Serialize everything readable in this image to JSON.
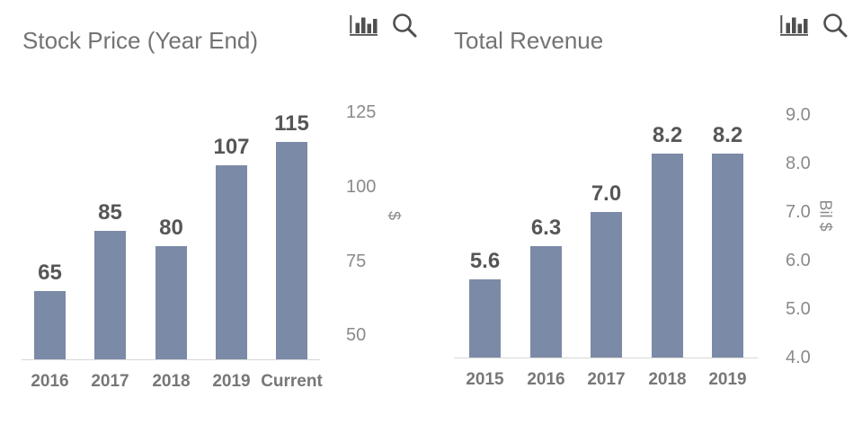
{
  "colors": {
    "bar": "#7b8aa6",
    "title": "#737373",
    "data_label": "#565656",
    "x_label": "#777777",
    "y_tick_label": "#8a8a8a",
    "axis_line": "#d8d8d8",
    "icon": "#4f4f4f",
    "background": "#ffffff"
  },
  "chart_data": [
    {
      "type": "bar",
      "title": "Stock Price (Year End)",
      "categories": [
        "2016",
        "2017",
        "2018",
        "2019",
        "Current"
      ],
      "values": [
        65,
        85,
        80,
        107,
        115
      ],
      "data_labels": [
        "65",
        "85",
        "80",
        "107",
        "115"
      ],
      "ylabel": "$",
      "xlabel": "",
      "ytick_labels": [
        "50",
        "75",
        "100",
        "125"
      ],
      "ytick_values": [
        50,
        75,
        100,
        125
      ],
      "ylim": [
        42,
        130
      ],
      "grid": false,
      "legend": "none",
      "toolbar_icons": [
        "bar-chart-icon",
        "search-icon"
      ]
    },
    {
      "type": "bar",
      "title": "Total Revenue",
      "categories": [
        "2015",
        "2016",
        "2017",
        "2018",
        "2019"
      ],
      "values": [
        5.6,
        6.3,
        7.0,
        8.2,
        8.2
      ],
      "data_labels": [
        "5.6",
        "6.3",
        "7.0",
        "8.2",
        "8.2"
      ],
      "ylabel": "Bil $",
      "xlabel": "",
      "ytick_labels": [
        "4.0",
        "5.0",
        "6.0",
        "7.0",
        "8.0",
        "9.0"
      ],
      "ytick_values": [
        4.0,
        5.0,
        6.0,
        7.0,
        8.0,
        9.0
      ],
      "ylim": [
        4.0,
        9.4
      ],
      "grid": false,
      "legend": "none",
      "toolbar_icons": [
        "bar-chart-icon",
        "search-icon"
      ]
    }
  ]
}
